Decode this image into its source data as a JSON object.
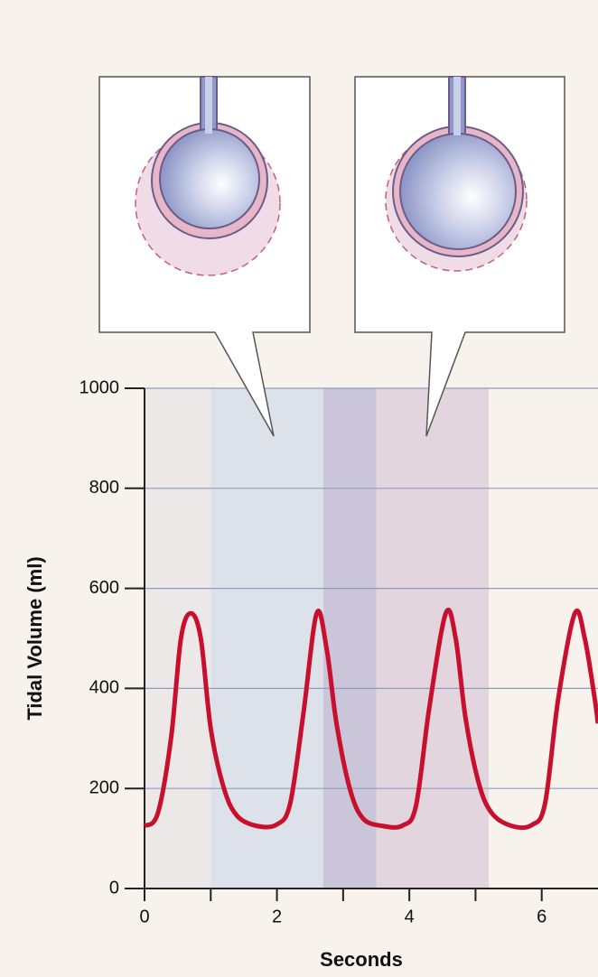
{
  "chart_data": {
    "type": "line",
    "y_label": "Tidal Volume (ml)",
    "x_label": "Seconds",
    "x": [
      0,
      0.2,
      0.4,
      0.55,
      0.7,
      0.85,
      1.0,
      1.2,
      1.4,
      1.7,
      2.0,
      2.2,
      2.4,
      2.6,
      2.75,
      2.9,
      3.1,
      3.3,
      3.6,
      3.9,
      4.1,
      4.3,
      4.55,
      4.7,
      4.85,
      5.05,
      5.25,
      5.55,
      5.85,
      6.05,
      6.25,
      6.5,
      6.65,
      6.8,
      6.85
    ],
    "values": [
      125,
      150,
      300,
      500,
      550,
      500,
      320,
      200,
      145,
      125,
      128,
      170,
      350,
      550,
      480,
      330,
      200,
      140,
      125,
      126,
      165,
      360,
      550,
      500,
      340,
      210,
      150,
      125,
      127,
      170,
      380,
      550,
      500,
      380,
      330
    ],
    "color": "#c8102e",
    "bands": [
      {
        "x": [
          0,
          1
        ],
        "color": "#ece8e7"
      },
      {
        "x": [
          1,
          2.7
        ],
        "color": "#dde2ea"
      },
      {
        "x": [
          2.7,
          3.5
        ],
        "color": "#cac5d8"
      },
      {
        "x": [
          3.5,
          5.2
        ],
        "color": "#e3d5de"
      }
    ],
    "xlim": [
      0,
      6.85
    ],
    "ylim": [
      0,
      1000
    ],
    "xticks": [
      0,
      2,
      4,
      6
    ],
    "xminor_ticks": [
      1,
      3,
      5
    ],
    "yticks": [
      0,
      200,
      400,
      600,
      800,
      1000
    ],
    "grid": true
  }
}
